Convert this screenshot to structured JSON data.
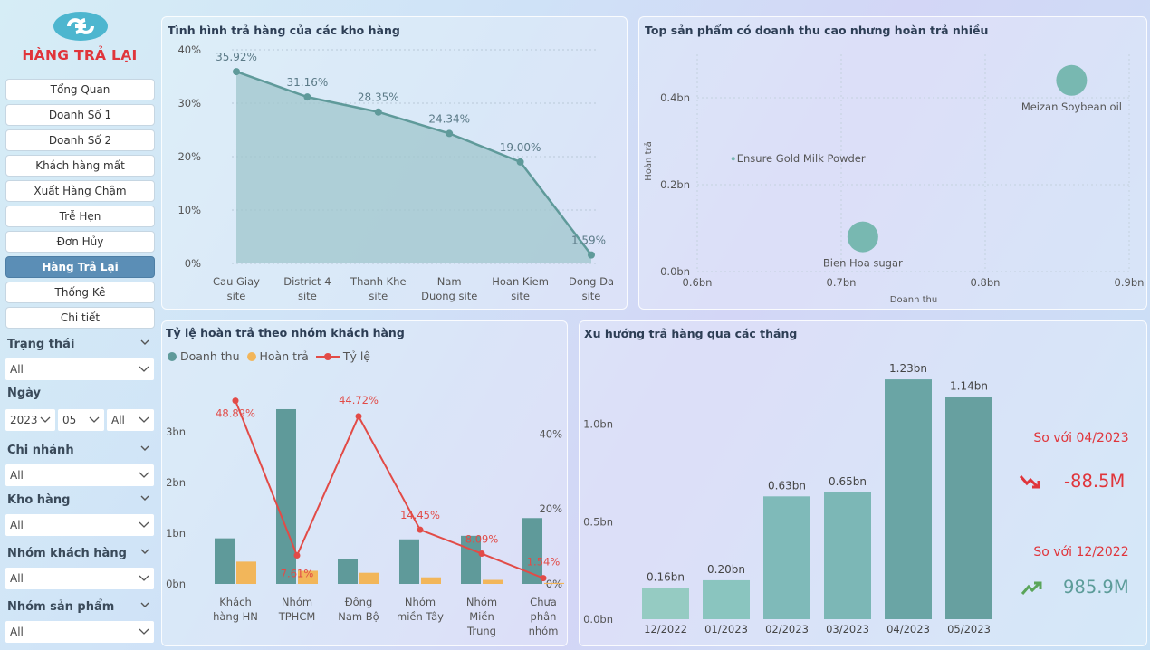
{
  "app": {
    "title": "HÀNG TRẢ LẠI"
  },
  "nav": [
    {
      "label": "Tổng Quan",
      "active": false
    },
    {
      "label": "Doanh Số 1",
      "active": false
    },
    {
      "label": "Doanh Số 2",
      "active": false
    },
    {
      "label": "Khách hàng mất",
      "active": false
    },
    {
      "label": "Xuất Hàng Chậm",
      "active": false
    },
    {
      "label": "Trễ Hẹn",
      "active": false
    },
    {
      "label": "Đơn Hủy",
      "active": false
    },
    {
      "label": "Hàng Trả Lại",
      "active": true
    },
    {
      "label": "Thống Kê",
      "active": false
    },
    {
      "label": "Chi tiết",
      "active": false
    }
  ],
  "filters": {
    "trang_thai": {
      "label": "Trạng thái",
      "value": "All"
    },
    "ngay": {
      "label": "Ngày",
      "year": "2023",
      "month": "05",
      "day": "All"
    },
    "chi_nhanh": {
      "label": "Chi nhánh",
      "value": "All"
    },
    "kho_hang": {
      "label": "Kho hàng",
      "value": "All"
    },
    "nhom_kh": {
      "label": "Nhóm khách hàng",
      "value": "All"
    },
    "nhom_sp": {
      "label": "Nhóm sản phẩm",
      "value": "All"
    }
  },
  "colors": {
    "accent": "#e0353b",
    "nav_active": "#5b8eb6",
    "teal": "#5f9a9a",
    "orange": "#f2b65a",
    "rate_line": "#e24b47",
    "up": "#5aa55a"
  },
  "chart_data": [
    {
      "type": "area",
      "title": "Tình hình trả hàng của các kho hàng",
      "categories": [
        "Cau Giay\nsite",
        "District 4\nsite",
        "Thanh Khe\nsite",
        "Nam\nDuong site",
        "Hoan Kiem\nsite",
        "Dong Da\nsite"
      ],
      "values": [
        35.92,
        31.16,
        28.35,
        24.34,
        19.0,
        1.59
      ],
      "data_labels": [
        "35.92%",
        "31.16%",
        "28.35%",
        "24.34%",
        "19.00%",
        "1.59%"
      ],
      "yticks": [
        "0%",
        "10%",
        "20%",
        "30%",
        "40%"
      ],
      "ylim": [
        0,
        40
      ]
    },
    {
      "type": "scatter",
      "title": "Top sản phẩm có doanh thu cao nhưng hoàn trả nhiều",
      "xlabel": "Doanh thu",
      "ylabel": "Hoàn trả",
      "xticks": [
        "0.6bn",
        "0.7bn",
        "0.8bn",
        "0.9bn"
      ],
      "xlim": [
        0.6,
        0.9
      ],
      "yticks": [
        "0.0bn",
        "0.2bn",
        "0.4bn"
      ],
      "ylim": [
        0,
        0.5
      ],
      "points": [
        {
          "label": "Meizan Soybean oil",
          "x": 0.86,
          "y": 0.44,
          "size": "large"
        },
        {
          "label": "Ensure Gold Milk Powder",
          "x": 0.625,
          "y": 0.26,
          "size": "small"
        },
        {
          "label": "Bien Hoa sugar",
          "x": 0.715,
          "y": 0.08,
          "size": "large"
        }
      ]
    },
    {
      "type": "bar",
      "title": "Tỷ lệ hoàn trả theo nhóm khách hàng",
      "categories": [
        "Khách\nhàng HN",
        "Nhóm\nTPHCM",
        "Đông\nNam Bộ",
        "Nhóm\nmiền Tây",
        "Nhóm\nMiền\nTrung",
        "Chưa\nphân\nnhóm"
      ],
      "series": [
        {
          "name": "Doanh thu",
          "values": [
            0.9,
            3.45,
            0.5,
            0.88,
            0.95,
            1.3
          ]
        },
        {
          "name": "Hoàn trả",
          "values": [
            0.44,
            0.26,
            0.22,
            0.13,
            0.08,
            0.02
          ]
        },
        {
          "name": "Tỷ lệ",
          "values": [
            48.89,
            7.61,
            44.72,
            14.45,
            8.09,
            1.54
          ]
        }
      ],
      "rate_labels": [
        "48.89%",
        "7.61%",
        "44.72%",
        "14.45%",
        "8.09%",
        "1.54%"
      ],
      "yticks_left": [
        "0bn",
        "1bn",
        "2bn",
        "3bn"
      ],
      "ylim_left": [
        0,
        3.7
      ],
      "yticks_right": [
        "0%",
        "20%",
        "40%"
      ],
      "ylim_right": [
        0,
        50
      ]
    },
    {
      "type": "bar",
      "title": "Xu hướng trả hàng qua các tháng",
      "categories": [
        "12/2022",
        "01/2023",
        "02/2023",
        "03/2023",
        "04/2023",
        "05/2023"
      ],
      "values": [
        0.16,
        0.2,
        0.63,
        0.65,
        1.23,
        1.14
      ],
      "data_labels": [
        "0.16bn",
        "0.20bn",
        "0.63bn",
        "0.65bn",
        "1.23bn",
        "1.14bn"
      ],
      "yticks": [
        "0.0bn",
        "0.5bn",
        "1.0bn"
      ],
      "ylim": [
        0,
        1.3
      ]
    }
  ],
  "comparisons": [
    {
      "label": "So với 04/2023",
      "value": "-88.5M",
      "trend": "down"
    },
    {
      "label": "So với 12/2022",
      "value": "985.9M",
      "trend": "up"
    }
  ]
}
